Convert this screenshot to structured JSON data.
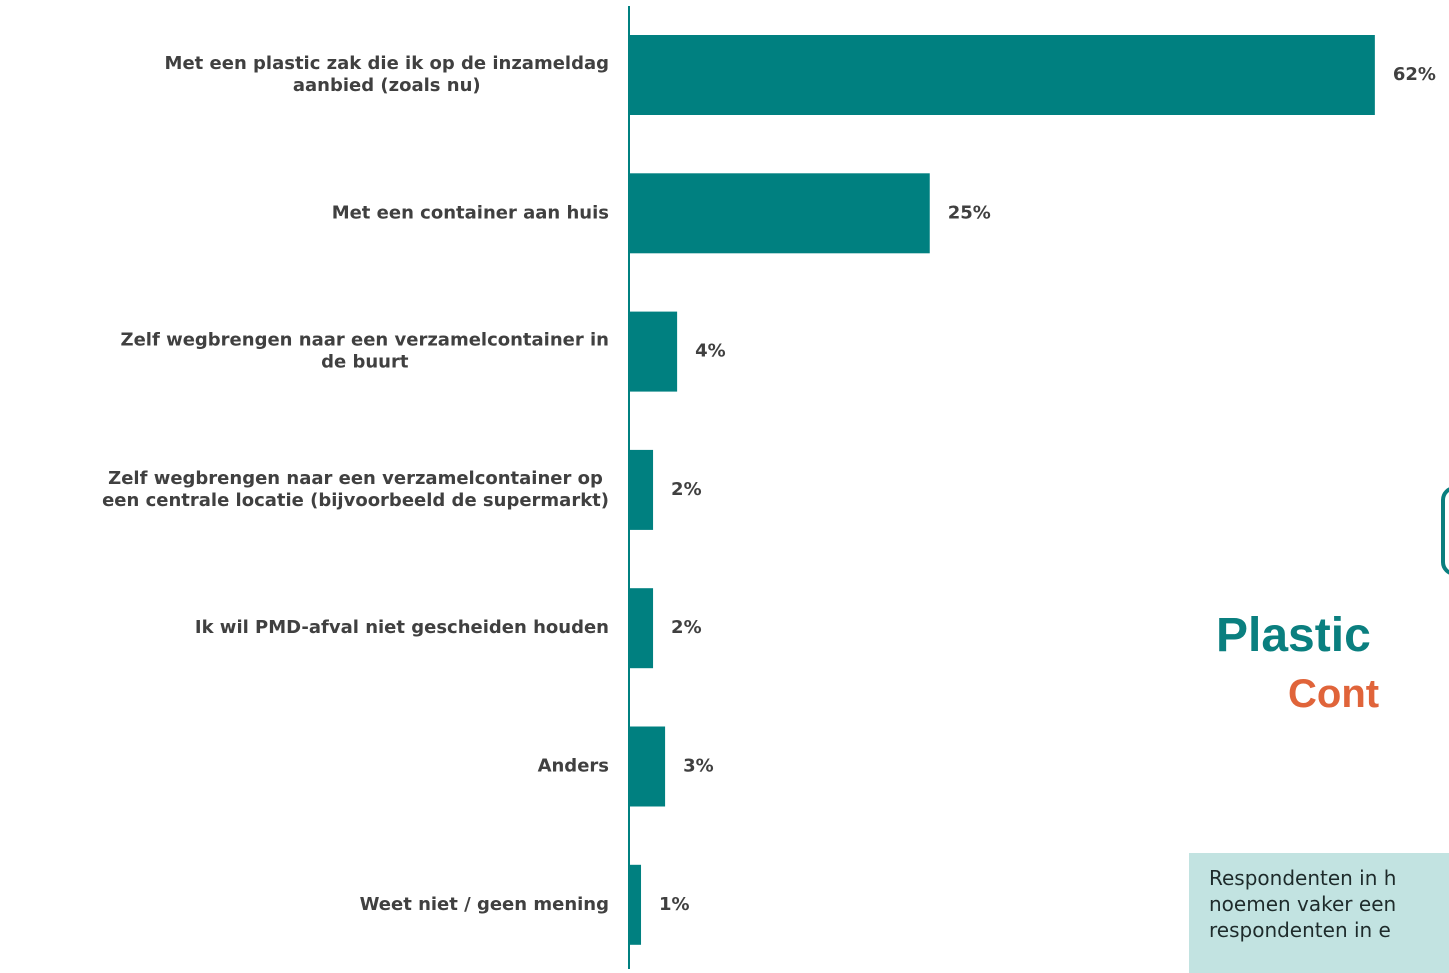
{
  "chart_data": {
    "type": "bar",
    "orientation": "horizontal",
    "categories": [
      [
        "Met een plastic zak die ik op de inzameldag",
        "aanbied (zoals nu)"
      ],
      [
        "Met een container aan huis"
      ],
      [
        "Zelf wegbrengen naar een verzamelcontainer in",
        "de buurt"
      ],
      [
        "Zelf wegbrengen naar een verzamelcontainer op",
        "een centrale locatie (bijvoorbeeld de supermarkt)"
      ],
      [
        "Ik wil PMD-afval niet gescheiden houden"
      ],
      [
        "Anders"
      ],
      [
        "Weet niet / geen mening"
      ]
    ],
    "values": [
      62,
      25,
      4,
      2,
      2,
      3,
      1
    ],
    "value_labels": [
      "62%",
      "25%",
      "4%",
      "2%",
      "2%",
      "3%",
      "1%"
    ],
    "bar_color": "#008080",
    "xlim": [
      0,
      100
    ],
    "grid": false
  },
  "side_panel": {
    "title_line_1": "Plastic",
    "title_line_2": "Cont",
    "title_color": "#0a7f7f",
    "subtitle_color": "#e0643a",
    "icon": "bin-outline-icon",
    "note_lines": [
      "Respondenten in h",
      "noemen vaker een",
      "respondenten in e"
    ],
    "note_bg": "#c2e3e1"
  }
}
